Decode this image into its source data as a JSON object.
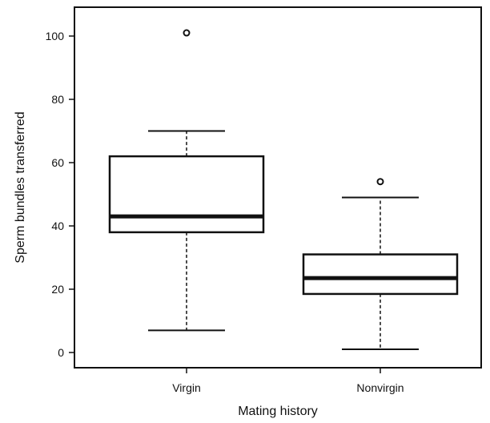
{
  "chart_data": {
    "type": "box",
    "xlabel": "Mating history",
    "ylabel": "Sperm bundles transferred",
    "categories": [
      "Virgin",
      "Nonvirgin"
    ],
    "ylim": [
      -5,
      110
    ],
    "yticks": [
      0,
      20,
      40,
      60,
      80,
      100
    ],
    "grid": false,
    "boxes": [
      {
        "category": "Virgin",
        "whisker_low": 7,
        "q1": 38,
        "median": 43,
        "q3": 62,
        "whisker_high": 70,
        "outliers": [
          101
        ]
      },
      {
        "category": "Nonvirgin",
        "whisker_low": 1,
        "q1": 18.5,
        "median": 23.5,
        "q3": 31,
        "whisker_high": 49,
        "outliers": [
          54
        ]
      }
    ],
    "colors": {
      "stroke": "#111111",
      "background": "#ffffff"
    }
  }
}
